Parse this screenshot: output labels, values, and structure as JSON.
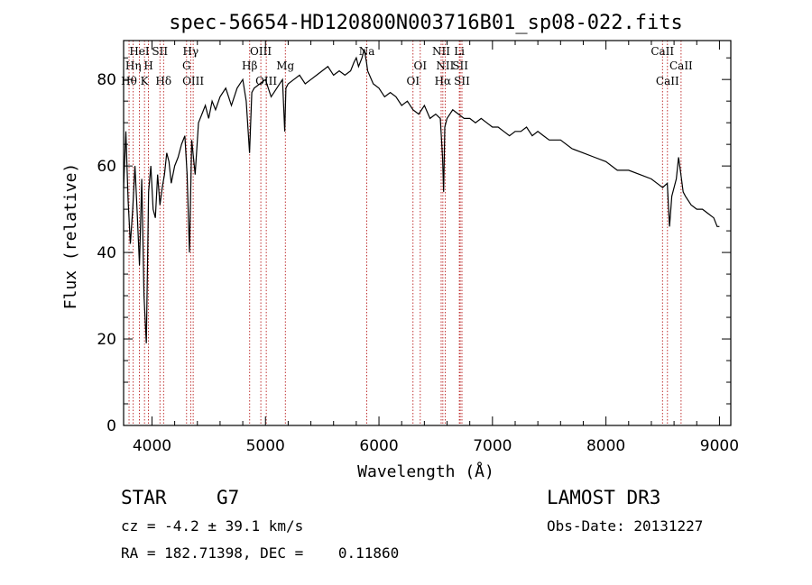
{
  "chart_data": {
    "type": "line",
    "title": "spec-56654-HD120800N003716B01_sp08-022.fits",
    "xlabel": "Wavelength (Å)",
    "ylabel": "Flux (relative)",
    "xlim": [
      3750,
      9100
    ],
    "ylim": [
      0,
      89
    ],
    "xticks": [
      4000,
      5000,
      6000,
      7000,
      8000,
      9000
    ],
    "yticks": [
      0,
      20,
      40,
      60,
      80
    ],
    "grid": false,
    "series": [
      {
        "name": "spectrum",
        "x": [
          3750,
          3770,
          3790,
          3810,
          3830,
          3850,
          3870,
          3890,
          3910,
          3930,
          3950,
          3970,
          3990,
          4010,
          4030,
          4050,
          4070,
          4090,
          4110,
          4130,
          4150,
          4170,
          4200,
          4230,
          4260,
          4290,
          4310,
          4330,
          4350,
          4380,
          4410,
          4440,
          4470,
          4500,
          4530,
          4560,
          4600,
          4650,
          4700,
          4750,
          4800,
          4830,
          4860,
          4880,
          4900,
          4950,
          5000,
          5050,
          5100,
          5150,
          5170,
          5180,
          5200,
          5250,
          5300,
          5350,
          5400,
          5450,
          5500,
          5550,
          5600,
          5650,
          5700,
          5750,
          5780,
          5800,
          5820,
          5850,
          5870,
          5890,
          5900,
          5950,
          6000,
          6050,
          6100,
          6150,
          6200,
          6250,
          6300,
          6350,
          6400,
          6450,
          6500,
          6540,
          6560,
          6570,
          6580,
          6600,
          6650,
          6700,
          6750,
          6800,
          6850,
          6900,
          6950,
          7000,
          7050,
          7100,
          7150,
          7200,
          7250,
          7300,
          7350,
          7400,
          7450,
          7500,
          7600,
          7700,
          7800,
          7900,
          8000,
          8100,
          8200,
          8300,
          8400,
          8450,
          8500,
          8540,
          8560,
          8580,
          8600,
          8620,
          8640,
          8660,
          8680,
          8700,
          8750,
          8800,
          8850,
          8900,
          8950,
          8980,
          9000
        ],
        "values": [
          55,
          68,
          52,
          42,
          50,
          60,
          49,
          37,
          57,
          30,
          19,
          54,
          60,
          50,
          48,
          58,
          51,
          55,
          58,
          63,
          61,
          56,
          60,
          62,
          65,
          67,
          58,
          40,
          66,
          58,
          70,
          72,
          74,
          71,
          75,
          73,
          76,
          78,
          74,
          78,
          80,
          75,
          63,
          77,
          78,
          79,
          80,
          76,
          78,
          80,
          68,
          78,
          79,
          80,
          81,
          79,
          80,
          81,
          82,
          83,
          81,
          82,
          81,
          82,
          84,
          85,
          83,
          85,
          87,
          84,
          82,
          79,
          78,
          76,
          77,
          76,
          74,
          75,
          73,
          72,
          74,
          71,
          72,
          71,
          62,
          54,
          69,
          71,
          73,
          72,
          71,
          71,
          70,
          71,
          70,
          69,
          69,
          68,
          67,
          68,
          68,
          69,
          67,
          68,
          67,
          66,
          66,
          64,
          63,
          62,
          61,
          59,
          59,
          58,
          57,
          56,
          55,
          56,
          46,
          53,
          55,
          57,
          62,
          58,
          54,
          53,
          51,
          50,
          50,
          49,
          48,
          46,
          46
        ]
      }
    ],
    "spectral_lines": [
      {
        "label": "Hθ",
        "x": 3798,
        "row": 3
      },
      {
        "label": "Hη",
        "x": 3835,
        "row": 2
      },
      {
        "label": "HeI",
        "x": 3889,
        "row": 1
      },
      {
        "label": "K",
        "x": 3934,
        "row": 3
      },
      {
        "label": "H",
        "x": 3969,
        "row": 2
      },
      {
        "label": "SII",
        "x": 4070,
        "row": 1
      },
      {
        "label": "Hδ",
        "x": 4102,
        "row": 3
      },
      {
        "label": "Hγ",
        "x": 4341,
        "row": 1
      },
      {
        "label": "G",
        "x": 4305,
        "row": 2
      },
      {
        "label": "OIII",
        "x": 4363,
        "row": 3
      },
      {
        "label": "Hβ",
        "x": 4861,
        "row": 2
      },
      {
        "label": "OIII",
        "x": 4959,
        "row": 1
      },
      {
        "label": "OIII",
        "x": 5007,
        "row": 3
      },
      {
        "label": "Mg",
        "x": 5175,
        "row": 2
      },
      {
        "label": "Na",
        "x": 5893,
        "row": 1
      },
      {
        "label": "OI",
        "x": 6300,
        "row": 3
      },
      {
        "label": "OI",
        "x": 6364,
        "row": 2
      },
      {
        "label": "NII",
        "x": 6548,
        "row": 1
      },
      {
        "label": "Hα",
        "x": 6563,
        "row": 3
      },
      {
        "label": "NII",
        "x": 6583,
        "row": 2
      },
      {
        "label": "Li",
        "x": 6708,
        "row": 1
      },
      {
        "label": "SII",
        "x": 6716,
        "row": 2
      },
      {
        "label": "SII",
        "x": 6731,
        "row": 3
      },
      {
        "label": "CaII",
        "x": 8498,
        "row": 1
      },
      {
        "label": "CaII",
        "x": 8542,
        "row": 3
      },
      {
        "label": "CaII",
        "x": 8662,
        "row": 2
      }
    ]
  },
  "info": {
    "object_class": "STAR",
    "subclass": "G7",
    "survey": "LAMOST DR3",
    "redshift": "cz = -4.2 ± 39.1 km/s",
    "obs_date": "Obs-Date: 20131227",
    "coords": "RA = 182.71398, DEC =    0.11860"
  }
}
